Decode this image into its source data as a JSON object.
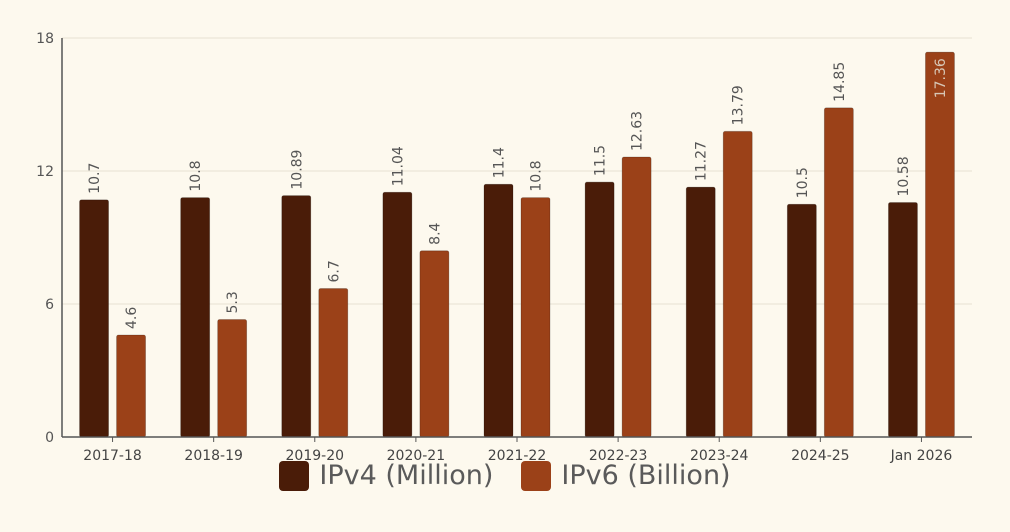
{
  "chart_data": {
    "type": "bar",
    "title": "",
    "xlabel": "",
    "ylabel": "",
    "ylim": [
      0,
      18
    ],
    "yticks": [
      0,
      6,
      12,
      18
    ],
    "grid": true,
    "legend_position": "bottom-center",
    "categories": [
      "2017-18",
      "2018-19",
      "2019-20",
      "2020-21",
      "2021-22",
      "2022-23",
      "2023-24",
      "2024-25",
      "Jan 2026"
    ],
    "series": [
      {
        "name": "IPv4 (Million)",
        "color": "#4a1c08",
        "values": [
          10.7,
          10.8,
          10.89,
          11.04,
          11.4,
          11.5,
          11.27,
          10.5,
          10.58
        ],
        "labels": [
          "10.7",
          "10.8",
          "10.89",
          "11.04",
          "11.4",
          "11.5",
          "11.27",
          "10.5",
          "10.58"
        ]
      },
      {
        "name": "IPv6 (Billion)",
        "color": "#9b4118",
        "values": [
          4.6,
          5.3,
          6.7,
          8.4,
          10.8,
          12.63,
          13.79,
          14.85,
          17.36
        ],
        "labels": [
          "4.6",
          "5.3",
          "6.7",
          "8.4",
          "10.8",
          "12.63",
          "13.79",
          "14.85",
          "17.36"
        ]
      }
    ]
  }
}
